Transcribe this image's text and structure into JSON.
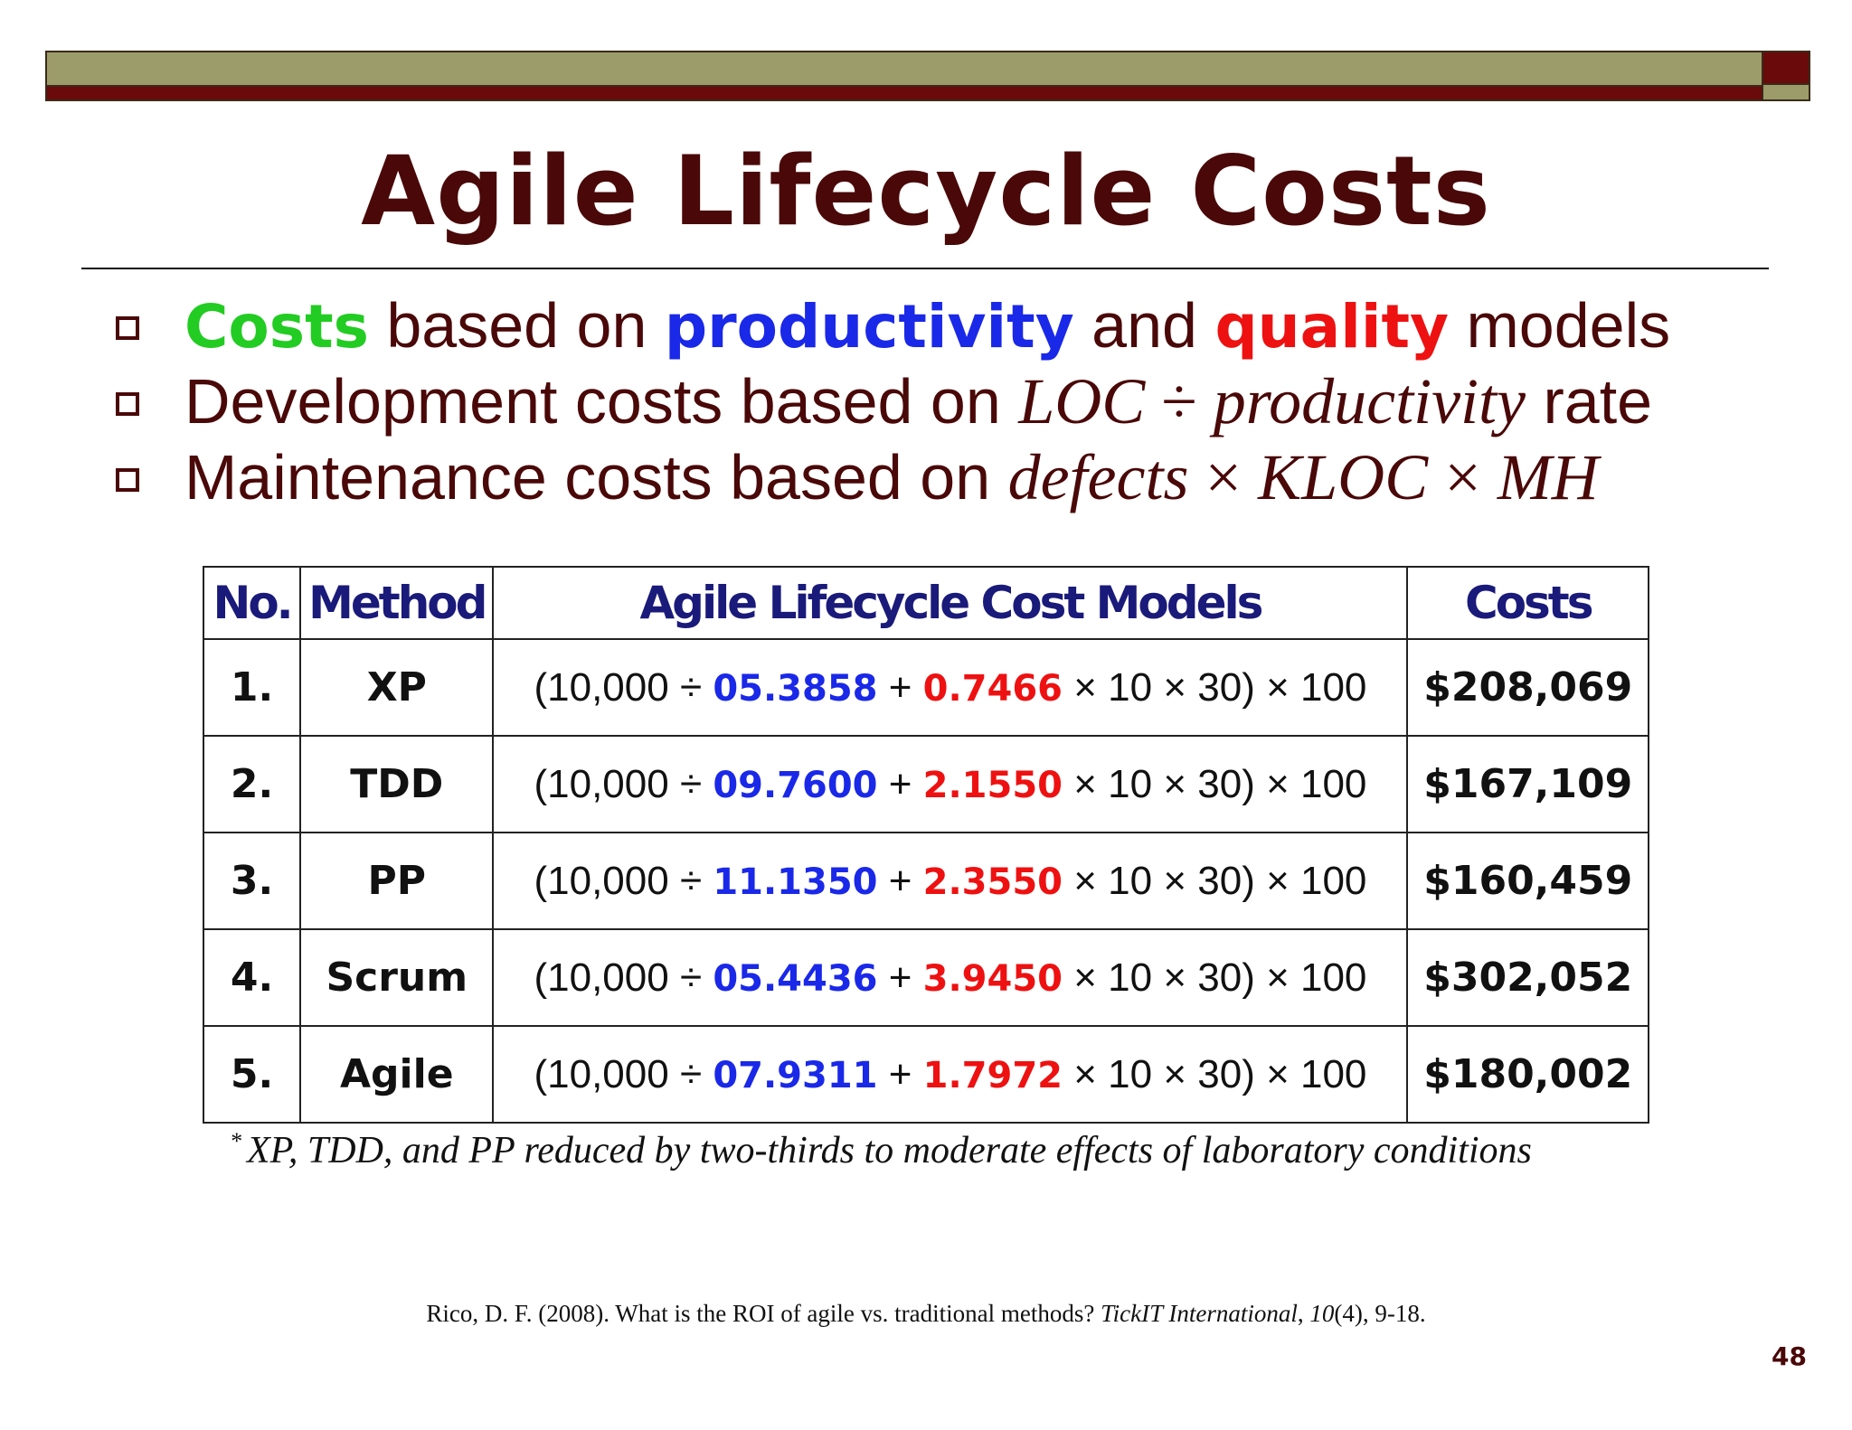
{
  "slide": {
    "title": "Agile Lifecycle Costs",
    "page_number": "48"
  },
  "bullets": [
    {
      "costs_word": "Costs",
      "t1": " based on ",
      "productivity_word": "productivity",
      "t2": " and ",
      "quality_word": "quality",
      "t3": " models"
    },
    {
      "lead": "Development costs based on ",
      "loc": "LOC",
      "div": " ÷ ",
      "prod": "productivity",
      "tail": " rate"
    },
    {
      "lead": "Maintenance costs based on ",
      "defects": "defects",
      "times1": " × ",
      "kloc": "KLOC",
      "times2": " × ",
      "mh": "MH"
    }
  ],
  "table": {
    "headers": {
      "no": "No.",
      "method": "Method",
      "models": "Agile Lifecycle Cost Models",
      "costs": "Costs"
    },
    "rows": [
      {
        "no": "1.",
        "method": "XP",
        "prefix": "(10,000 ÷ ",
        "productivity": "05.3858",
        "plus": " + ",
        "quality": "0.7466",
        "suffix": " × 10 × 30) × 100",
        "cost": "$208,069"
      },
      {
        "no": "2.",
        "method": "TDD",
        "prefix": "(10,000 ÷ ",
        "productivity": "09.7600",
        "plus": " + ",
        "quality": "2.1550",
        "suffix": " × 10 × 30) × 100",
        "cost": "$167,109"
      },
      {
        "no": "3.",
        "method": "PP",
        "prefix": "(10,000 ÷ ",
        "productivity": "11.1350",
        "plus": " + ",
        "quality": "2.3550",
        "suffix": " × 10 × 30) × 100",
        "cost": "$160,459"
      },
      {
        "no": "4.",
        "method": "Scrum",
        "prefix": "(10,000 ÷ ",
        "productivity": "05.4436",
        "plus": " + ",
        "quality": "3.9450",
        "suffix": " × 10 × 30) × 100",
        "cost": "$302,052"
      },
      {
        "no": "5.",
        "method": "Agile",
        "prefix": "(10,000 ÷ ",
        "productivity": "07.9311",
        "plus": " + ",
        "quality": "1.7972",
        "suffix": " × 10 × 30) × 100",
        "cost": "$180,002"
      }
    ]
  },
  "footnote": {
    "mark": "*",
    "text": "XP, TDD, and PP reduced by two-thirds to moderate effects of laboratory conditions"
  },
  "citation": {
    "prefix": "Rico, D. F. (2008). What is the ROI of agile vs. traditional methods? ",
    "journal": "TickIT International",
    "comma": ", ",
    "volume": "10",
    "tail": "(4), 9-18."
  },
  "colors": {
    "title": "#4a0808",
    "productivity": "#1a28e8",
    "quality": "#ee1111",
    "costs": "#22cc22",
    "header_text": "#1a1a7a",
    "bar_olive": "#9c9c6a",
    "bar_maroon": "#6b0a0a"
  }
}
